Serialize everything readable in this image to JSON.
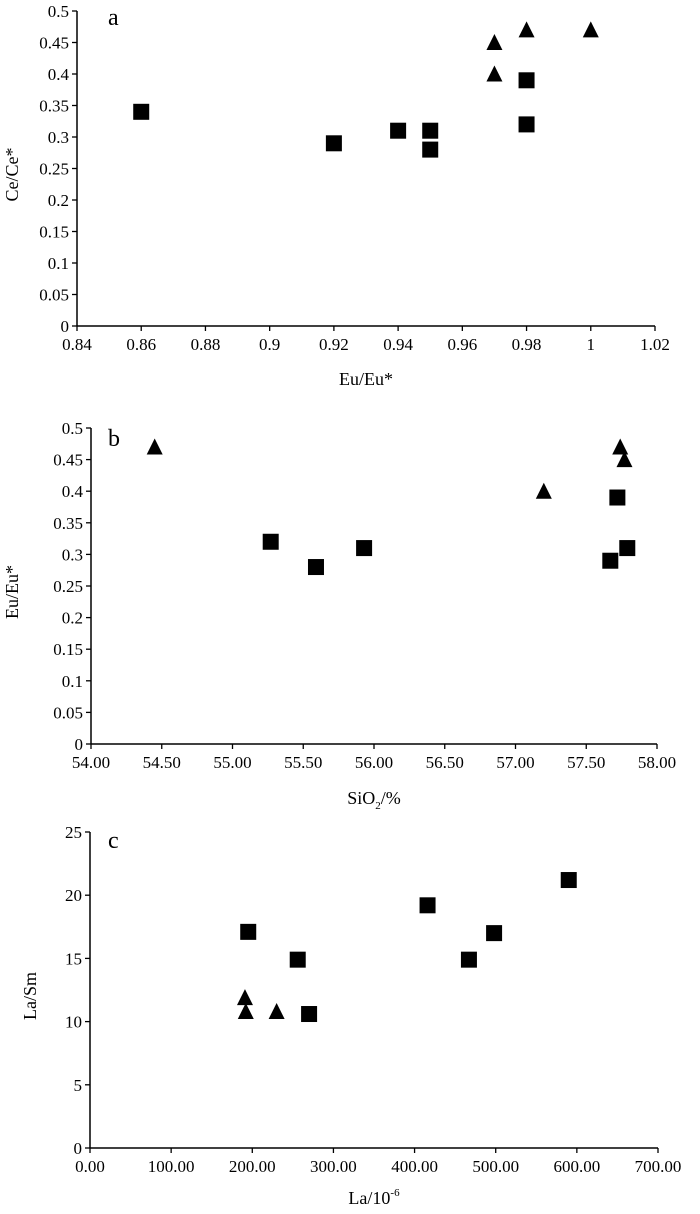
{
  "chart_data": [
    {
      "panel": "a",
      "type": "scatter",
      "xlabel": "Eu/Eu*",
      "ylabel": "Ce/Ce*",
      "xlim": [
        0.84,
        1.02
      ],
      "ylim": [
        0,
        0.5
      ],
      "xticks": [
        "0.84",
        "0.86",
        "0.88",
        "0.9",
        "0.92",
        "0.94",
        "0.96",
        "0.98",
        "1",
        "1.02"
      ],
      "yticks": [
        "0",
        "0.05",
        "0.1",
        "0.15",
        "0.2",
        "0.25",
        "0.3",
        "0.35",
        "0.4",
        "0.45",
        "0.5"
      ],
      "series": [
        {
          "marker": "square",
          "points": [
            [
              0.86,
              0.34
            ],
            [
              0.92,
              0.29
            ],
            [
              0.94,
              0.31
            ],
            [
              0.95,
              0.31
            ],
            [
              0.95,
              0.28
            ],
            [
              0.98,
              0.39
            ],
            [
              0.98,
              0.32
            ]
          ]
        },
        {
          "marker": "triangle",
          "points": [
            [
              0.97,
              0.45
            ],
            [
              0.97,
              0.4
            ],
            [
              0.98,
              0.47
            ],
            [
              1.0,
              0.47
            ]
          ]
        }
      ]
    },
    {
      "panel": "b",
      "type": "scatter",
      "xlabel": "SiO",
      "xlabel_sub": "2",
      "xlabel_suffix": "/%",
      "ylabel": "Eu/Eu*",
      "xlim": [
        54.0,
        58.0
      ],
      "ylim": [
        0,
        0.5
      ],
      "xticks": [
        "54.00",
        "54.50",
        "55.00",
        "55.50",
        "56.00",
        "56.50",
        "57.00",
        "57.50",
        "58.00"
      ],
      "yticks": [
        "0",
        "0.05",
        "0.1",
        "0.15",
        "0.2",
        "0.25",
        "0.3",
        "0.35",
        "0.4",
        "0.45",
        "0.5"
      ],
      "series": [
        {
          "marker": "square",
          "points": [
            [
              55.27,
              0.32
            ],
            [
              55.59,
              0.28
            ],
            [
              55.93,
              0.31
            ],
            [
              57.67,
              0.29
            ],
            [
              57.72,
              0.39
            ],
            [
              57.79,
              0.31
            ]
          ]
        },
        {
          "marker": "triangle",
          "points": [
            [
              54.45,
              0.47
            ],
            [
              57.2,
              0.4
            ],
            [
              57.74,
              0.47
            ],
            [
              57.77,
              0.45
            ]
          ]
        }
      ]
    },
    {
      "panel": "c",
      "type": "scatter",
      "xlabel": "La/10",
      "xlabel_sup": "-6",
      "ylabel": "La/Sm",
      "xlim": [
        0,
        700
      ],
      "ylim": [
        0,
        25
      ],
      "xticks": [
        "0.00",
        "100.00",
        "200.00",
        "300.00",
        "400.00",
        "500.00",
        "600.00",
        "700.00"
      ],
      "yticks": [
        "0",
        "5",
        "10",
        "15",
        "20",
        "25"
      ],
      "series": [
        {
          "marker": "square",
          "points": [
            [
              195,
              17.1
            ],
            [
              256,
              14.9
            ],
            [
              270,
              10.6
            ],
            [
              416,
              19.2
            ],
            [
              467,
              14.9
            ],
            [
              498,
              17.0
            ],
            [
              590,
              21.2
            ]
          ]
        },
        {
          "marker": "triangle",
          "points": [
            [
              191,
              11.9
            ],
            [
              192,
              10.8
            ],
            [
              230,
              10.8
            ]
          ]
        }
      ]
    }
  ]
}
